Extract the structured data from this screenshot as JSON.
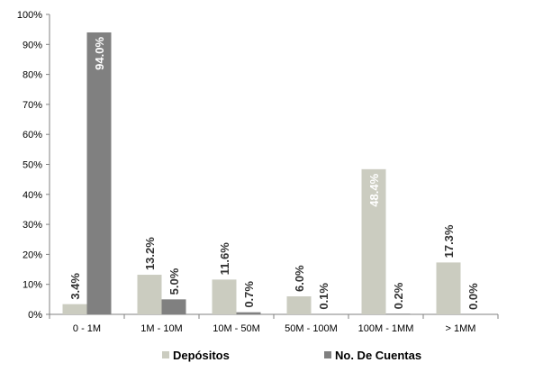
{
  "chart_data": {
    "type": "bar",
    "categories": [
      "0 - 1M",
      "1M - 10M",
      "10M - 50M",
      "50M - 100M",
      "100M - 1MM",
      "> 1MM"
    ],
    "series": [
      {
        "name": "Depósitos",
        "values": [
          3.4,
          13.2,
          11.6,
          6.0,
          48.4,
          17.3
        ],
        "labels": [
          "3.4%",
          "13.2%",
          "11.6%",
          "6.0%",
          "48.4%",
          "17.3%"
        ],
        "color": "#cbccc0"
      },
      {
        "name": "No. De Cuentas",
        "values": [
          94.0,
          5.0,
          0.7,
          0.1,
          0.2,
          0.0
        ],
        "labels": [
          "94.0%",
          "5.0%",
          "0.7%",
          "0.1%",
          "0.2%",
          "0.0%"
        ],
        "color": "#808080"
      }
    ],
    "yticks": [
      "0%",
      "10%",
      "20%",
      "30%",
      "40%",
      "50%",
      "60%",
      "70%",
      "80%",
      "90%",
      "100%"
    ],
    "ylim": [
      0,
      100
    ],
    "title": "",
    "xlabel": "",
    "ylabel": "",
    "grid": false,
    "legend_position": "bottom"
  }
}
